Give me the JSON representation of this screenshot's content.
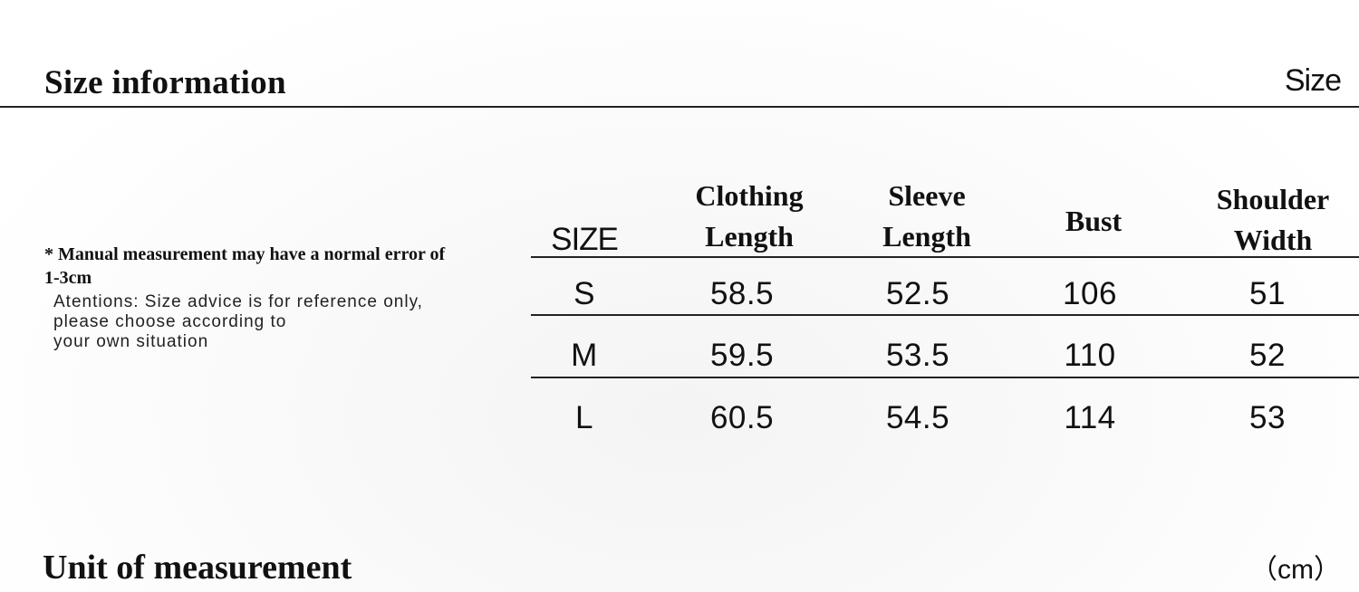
{
  "header": {
    "title": "Size information",
    "corner_label": "Size"
  },
  "notes": {
    "note": "* Manual measurement may have a normal error of 1-3cm",
    "attention_lines": [
      "Atentions: Size advice is for reference only,",
      "please choose according to",
      "your own situation"
    ]
  },
  "table": {
    "columns": [
      {
        "lines": [
          "SIZE"
        ]
      },
      {
        "lines": [
          "Clothing",
          "Length"
        ]
      },
      {
        "lines": [
          "Sleeve",
          "Length"
        ]
      },
      {
        "lines": [
          "Bust"
        ]
      },
      {
        "lines": [
          "Shoulder",
          "Width"
        ]
      }
    ],
    "rows": [
      [
        "S",
        "58.5",
        "52.5",
        "106",
        "51"
      ],
      [
        "M",
        "59.5",
        "53.5",
        "110",
        "52"
      ],
      [
        "L",
        "60.5",
        "54.5",
        "114",
        "53"
      ]
    ]
  },
  "footer": {
    "title": "Unit of measurement",
    "unit": "（cm）"
  }
}
